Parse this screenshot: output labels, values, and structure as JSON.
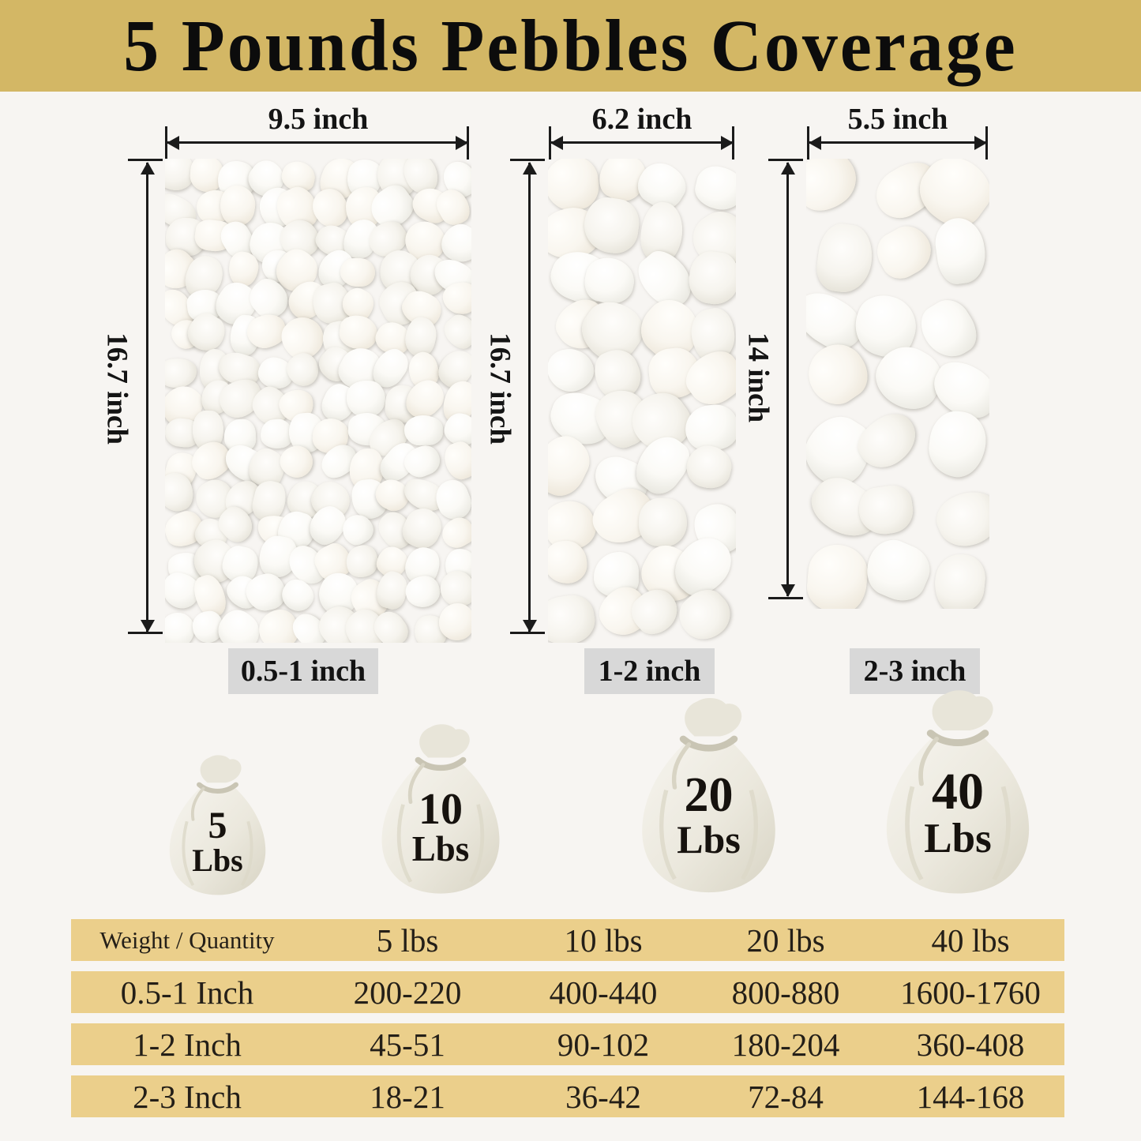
{
  "banner": {
    "title": "5 Pounds Pebbles Coverage"
  },
  "panels": [
    {
      "name": "small",
      "width_label": "9.5 inch",
      "height_label": "16.7 inch",
      "size_label": "0.5-1 inch"
    },
    {
      "name": "medium",
      "width_label": "6.2 inch",
      "height_label": "16.7 inch",
      "size_label": "1-2 inch"
    },
    {
      "name": "large",
      "width_label": "5.5 inch",
      "height_label": "14 inch",
      "size_label": "2-3 inch"
    }
  ],
  "bags": [
    {
      "weight": "5",
      "unit": "Lbs"
    },
    {
      "weight": "10",
      "unit": "Lbs"
    },
    {
      "weight": "20",
      "unit": "Lbs"
    },
    {
      "weight": "40",
      "unit": "Lbs"
    }
  ],
  "table": {
    "header": [
      "Weight / Quantity",
      "5 lbs",
      "10 lbs",
      "20 lbs",
      "40 lbs"
    ],
    "rows": [
      [
        "0.5-1 Inch",
        "200-220",
        "400-440",
        "800-880",
        "1600-1760"
      ],
      [
        "1-2 Inch",
        "45-51",
        "90-102",
        "180-204",
        "360-408"
      ],
      [
        "2-3 Inch",
        "18-21",
        "36-42",
        "72-84",
        "144-168"
      ]
    ]
  },
  "colors": {
    "banner_gold": "#d3b765",
    "table_gold": "#ebcf8b",
    "tag_gray": "#d8d8d8",
    "page_bg": "#f7f5f2"
  }
}
